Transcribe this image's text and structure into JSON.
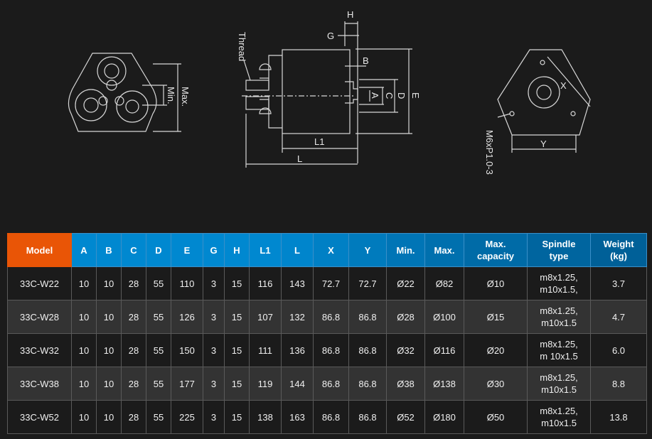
{
  "colors": {
    "model_header": "#e95506",
    "header_start": "#0088d0",
    "header_end": "#006098",
    "row_dark": "#1b1b1b",
    "row_light": "#333333"
  },
  "drawings": {
    "front": {
      "max_label": "Max.",
      "min_label": "Min."
    },
    "side": {
      "thread_label": "Thread",
      "h": "H",
      "g": "G",
      "b": "B",
      "a": "A",
      "c": "C",
      "d": "D",
      "e": "E",
      "l1": "L1",
      "l": "L"
    },
    "back": {
      "x": "X",
      "y": "Y",
      "screw_label": "M6xP1.0-3"
    }
  },
  "table": {
    "headers": [
      "Model",
      "A",
      "B",
      "C",
      "D",
      "E",
      "G",
      "H",
      "L1",
      "L",
      "X",
      "Y",
      "Min.",
      "Max.",
      "Max. capacity",
      "Spindle type",
      "Weight (kg)"
    ],
    "rows": [
      [
        "33C-W22",
        "10",
        "10",
        "28",
        "55",
        "110",
        "3",
        "15",
        "116",
        "143",
        "72.7",
        "72.7",
        "Ø22",
        "Ø82",
        "Ø10",
        "m8x1.25, m10x1.5,",
        "3.7"
      ],
      [
        "33C-W28",
        "10",
        "10",
        "28",
        "55",
        "126",
        "3",
        "15",
        "107",
        "132",
        "86.8",
        "86.8",
        "Ø28",
        "Ø100",
        "Ø15",
        "m8x1.25, m10x1.5",
        "4.7"
      ],
      [
        "33C-W32",
        "10",
        "10",
        "28",
        "55",
        "150",
        "3",
        "15",
        "111",
        "136",
        "86.8",
        "86.8",
        "Ø32",
        "Ø116",
        "Ø20",
        "m8x1.25, m 10x1.5",
        "6.0"
      ],
      [
        "33C-W38",
        "10",
        "10",
        "28",
        "55",
        "177",
        "3",
        "15",
        "119",
        "144",
        "86.8",
        "86.8",
        "Ø38",
        "Ø138",
        "Ø30",
        "m8x1.25, m10x1.5",
        "8.8"
      ],
      [
        "33C-W52",
        "10",
        "10",
        "28",
        "55",
        "225",
        "3",
        "15",
        "138",
        "163",
        "86.8",
        "86.8",
        "Ø52",
        "Ø180",
        "Ø50",
        "m8x1.25, m10x1.5",
        "13.8"
      ]
    ]
  }
}
